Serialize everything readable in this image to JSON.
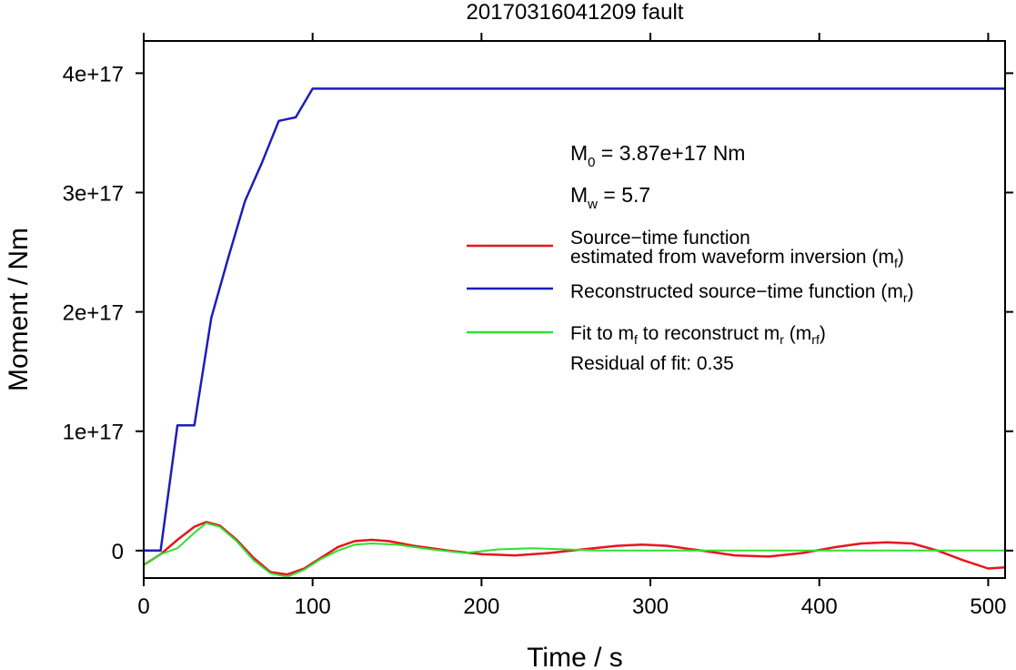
{
  "chart_data": {
    "type": "line",
    "title": "20170316041209 fault",
    "xlabel": "Time / s",
    "ylabel": "Moment / Nm",
    "xlim": [
      0,
      510
    ],
    "ylim": [
      -2.3e+16,
      4.27e+17
    ],
    "xticks": [
      0,
      100,
      200,
      300,
      400,
      500
    ],
    "xtick_labels": [
      "0",
      "100",
      "200",
      "300",
      "400",
      "500"
    ],
    "yticks": [
      0,
      1e+17,
      2e+17,
      3e+17,
      4e+17
    ],
    "ytick_labels": [
      "0",
      "1e+17",
      "2e+17",
      "3e+17",
      "4e+17"
    ],
    "grid": false,
    "legend_position": "right",
    "annotations": {
      "m0_base": "M",
      "m0_sub": "0",
      "m0_rest": " = 3.87e+17 Nm",
      "mw_base": "M",
      "mw_sub": "w",
      "mw_rest": " = 5.7",
      "residual": "Residual of fit: 0.35"
    },
    "legend": [
      {
        "line1": "Source−time function",
        "line2a": "estimated from waveform inversion (m",
        "line2sub": "f",
        "line2b": ")",
        "color": "#e8141c"
      },
      {
        "line1a": "Reconstructed source−time function (m",
        "line1sub": "r",
        "line1b": ")",
        "color": "#1d1dbc"
      },
      {
        "line1a": "Fit to m",
        "line1sub1": "f",
        "line1mid": " to reconstruct m",
        "line1sub2": "r",
        "line1c": " (m",
        "line1sub3": "rf",
        "line1d": ")",
        "color": "#2ee12e"
      }
    ],
    "series": [
      {
        "color": "#1d1dbc",
        "x": [
          0,
          10,
          20,
          30,
          40,
          50,
          60,
          70,
          80,
          90,
          100,
          510
        ],
        "y": [
          0,
          0,
          1.05e+17,
          1.05e+17,
          1.95e+17,
          2.45e+17,
          2.93e+17,
          3.25e+17,
          3.6e+17,
          3.63e+17,
          3.87e+17,
          3.87e+17
        ]
      },
      {
        "color": "#e8141c",
        "x": [
          0,
          10,
          20,
          30,
          37,
          45,
          55,
          65,
          75,
          85,
          95,
          105,
          115,
          125,
          135,
          145,
          160,
          180,
          200,
          220,
          240,
          260,
          280,
          295,
          310,
          330,
          350,
          370,
          390,
          410,
          425,
          440,
          455,
          470,
          485,
          500,
          510
        ],
        "y": [
          -1.2e+16,
          -3000000000000000.0,
          9000000000000000.0,
          2e+16,
          2.4e+16,
          2.1e+16,
          9000000000000000.0,
          -6000000000000000.0,
          -1.8e+16,
          -2e+16,
          -1.5e+16,
          -6000000000000000.0,
          3000000000000000.0,
          8000000000000000.0,
          9000000000000000.0,
          8000000000000000.0,
          4000000000000000.0,
          0,
          -3000000000000000.0,
          -4000000000000000.0,
          -2000000000000000.0,
          1000000000000000.0,
          4000000000000000.0,
          5000000000000000.0,
          4000000000000000.0,
          0,
          -4000000000000000.0,
          -5000000000000000.0,
          -2000000000000000.0,
          3000000000000000.0,
          6000000000000000.0,
          7000000000000000.0,
          6000000000000000.0,
          0,
          -8000000000000000.0,
          -1.5e+16,
          -1.4e+16
        ]
      },
      {
        "color": "#2ee12e",
        "x": [
          0,
          10,
          20,
          30,
          37,
          45,
          55,
          65,
          75,
          85,
          95,
          105,
          115,
          125,
          135,
          150,
          170,
          190,
          210,
          230,
          250,
          270,
          300,
          330,
          360,
          400,
          450,
          510
        ],
        "y": [
          -1.2e+16,
          -3000000000000000.0,
          2000000000000000.0,
          1.5e+16,
          2.3e+16,
          2e+16,
          8000000000000000.0,
          -8000000000000000.0,
          -1.9e+16,
          -2.2e+16,
          -1.6e+16,
          -7000000000000000.0,
          0,
          5000000000000000.0,
          6000000000000000.0,
          5000000000000000.0,
          1000000000000000.0,
          -2000000000000000.0,
          1000000000000000.0,
          2000000000000000.0,
          1000000000000000.0,
          0,
          0,
          0,
          0,
          0,
          0,
          0
        ]
      }
    ]
  }
}
